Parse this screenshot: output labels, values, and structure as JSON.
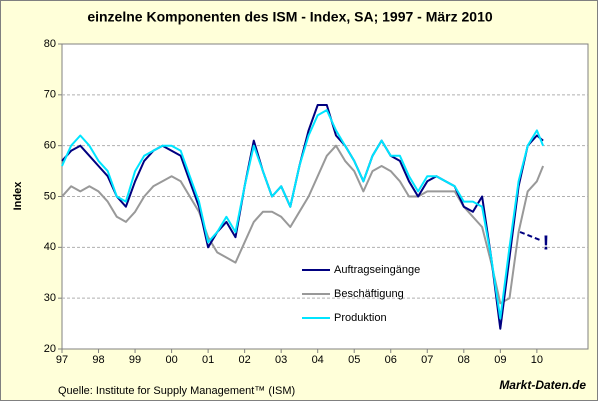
{
  "chart_data": {
    "type": "line",
    "title": "einzelne Komponenten des ISM - Index, SA; 1997 - März 2010",
    "y_label": "Index",
    "source": "Quelle: Institute for Supply Management™ (ISM)",
    "brand": "Markt-Daten.de",
    "annotation": "!",
    "x": [
      1997.0,
      1997.25,
      1997.5,
      1997.75,
      1998.0,
      1998.25,
      1998.5,
      1998.75,
      1999.0,
      1999.25,
      1999.5,
      1999.75,
      2000.0,
      2000.25,
      2000.5,
      2000.75,
      2001.0,
      2001.25,
      2001.5,
      2001.75,
      2002.0,
      2002.25,
      2002.5,
      2002.75,
      2003.0,
      2003.25,
      2003.5,
      2003.75,
      2004.0,
      2004.25,
      2004.5,
      2004.75,
      2005.0,
      2005.25,
      2005.5,
      2005.75,
      2006.0,
      2006.25,
      2006.5,
      2006.75,
      2007.0,
      2007.25,
      2007.5,
      2007.75,
      2008.0,
      2008.25,
      2008.5,
      2008.75,
      2009.0,
      2009.25,
      2009.5,
      2009.75,
      2010.0,
      2010.17
    ],
    "series": [
      {
        "name": "Auftragseingänge",
        "color": "#000080",
        "values": [
          57,
          59,
          60,
          58,
          56,
          54,
          50,
          48,
          53,
          57,
          59,
          60,
          59,
          58,
          53,
          48,
          40,
          43,
          45,
          42,
          52,
          61,
          55,
          50,
          52,
          48,
          56,
          63,
          68,
          68,
          62,
          60,
          57,
          53,
          58,
          61,
          58,
          57,
          53,
          50,
          53,
          54,
          53,
          52,
          48,
          47,
          50,
          38,
          24,
          38,
          52,
          60,
          62,
          61
        ]
      },
      {
        "name": "Beschäftigung",
        "color": "#999999",
        "values": [
          50,
          52,
          51,
          52,
          51,
          49,
          46,
          45,
          47,
          50,
          52,
          53,
          54,
          53,
          50,
          47,
          42,
          39,
          38,
          37,
          41,
          45,
          47,
          47,
          46,
          44,
          47,
          50,
          54,
          58,
          60,
          57,
          55,
          51,
          55,
          56,
          55,
          53,
          50,
          50,
          51,
          51,
          51,
          51,
          48,
          46,
          44,
          37,
          29,
          30,
          43,
          51,
          53,
          56
        ]
      },
      {
        "name": "Produktion",
        "color": "#00e5ff",
        "values": [
          56,
          60,
          62,
          60,
          57,
          55,
          50,
          49,
          55,
          58,
          59,
          60,
          60,
          59,
          54,
          49,
          41,
          43,
          46,
          43,
          52,
          60,
          55,
          50,
          52,
          48,
          56,
          62,
          66,
          67,
          63,
          60,
          57,
          53,
          58,
          61,
          58,
          58,
          54,
          51,
          54,
          54,
          53,
          52,
          49,
          49,
          48,
          38,
          26,
          40,
          53,
          60,
          63,
          60
        ]
      }
    ],
    "xlim": [
      1997,
      2011.4
    ],
    "xticks": [
      {
        "value": 1997,
        "label": "97"
      },
      {
        "value": 1998,
        "label": "98"
      },
      {
        "value": 1999,
        "label": "99"
      },
      {
        "value": 2000,
        "label": "00"
      },
      {
        "value": 2001,
        "label": "01"
      },
      {
        "value": 2002,
        "label": "02"
      },
      {
        "value": 2003,
        "label": "03"
      },
      {
        "value": 2004,
        "label": "04"
      },
      {
        "value": 2005,
        "label": "05"
      },
      {
        "value": 2006,
        "label": "06"
      },
      {
        "value": 2007,
        "label": "07"
      },
      {
        "value": 2008,
        "label": "08"
      },
      {
        "value": 2009,
        "label": "09"
      },
      {
        "value": 2010,
        "label": "10"
      }
    ],
    "ylim": [
      20,
      80
    ],
    "yticks": [
      20,
      30,
      40,
      50,
      60,
      70,
      80
    ],
    "grid": true
  }
}
